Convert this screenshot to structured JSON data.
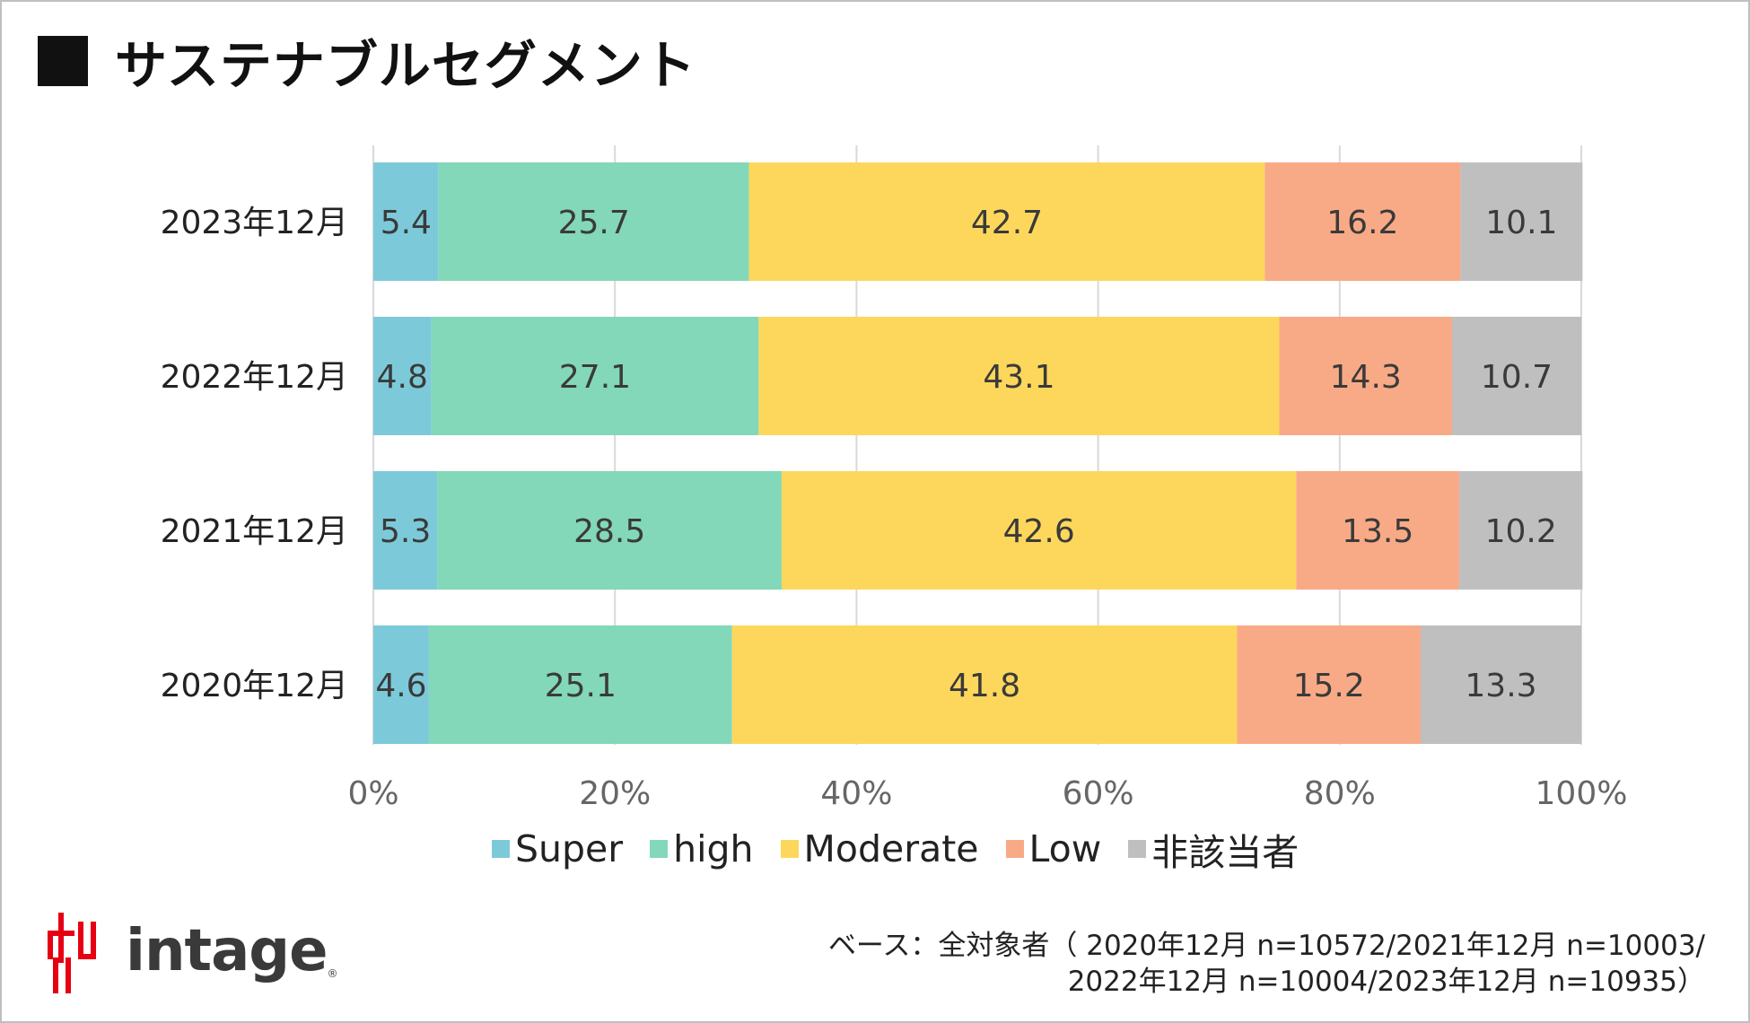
{
  "title": "サステナブルセグメント",
  "chart_data": {
    "type": "bar",
    "orientation": "horizontal",
    "stacked": true,
    "categories": [
      "2023年12月",
      "2022年12月",
      "2021年12月",
      "2020年12月"
    ],
    "series": [
      {
        "name": "Super",
        "color": "#7ccad9",
        "values": [
          5.4,
          4.8,
          5.3,
          4.6
        ]
      },
      {
        "name": "high",
        "color": "#82d8b9",
        "values": [
          25.7,
          27.1,
          28.5,
          25.1
        ]
      },
      {
        "name": "Moderate",
        "color": "#fdd75c",
        "values": [
          42.7,
          43.1,
          42.6,
          41.8
        ]
      },
      {
        "name": "Low",
        "color": "#f8aa86",
        "values": [
          16.2,
          14.3,
          13.5,
          15.2
        ]
      },
      {
        "name": "非該当者",
        "color": "#bfbfbf",
        "values": [
          10.1,
          10.7,
          10.2,
          13.3
        ]
      }
    ],
    "xlim": [
      0,
      100
    ],
    "x_ticks": [
      "0%",
      "20%",
      "40%",
      "60%",
      "80%",
      "100%"
    ],
    "grid": true,
    "legend_position": "bottom"
  },
  "branding": {
    "logo_text": "intage",
    "logo_reg": "®"
  },
  "footnote": {
    "line1": "ベース：全対象者（ 2020年12月 n=10572/2021年12月 n=10003/",
    "line2": "2022年12月 n=10004/2023年12月 n=10935）"
  }
}
